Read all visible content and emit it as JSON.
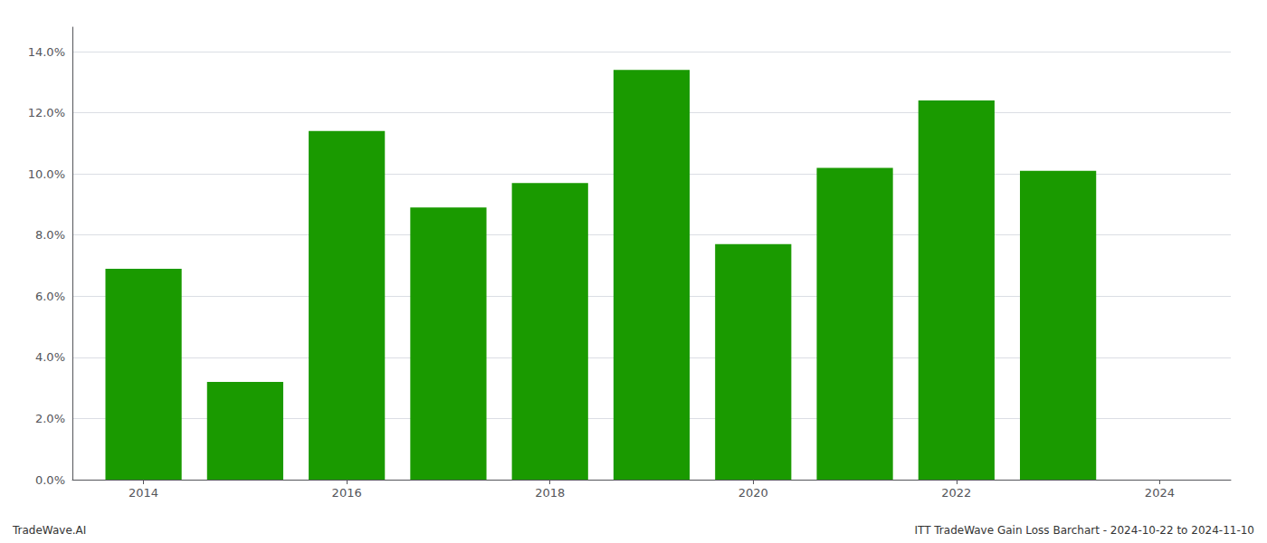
{
  "chart_data": {
    "type": "bar",
    "x": [
      2014,
      2015,
      2016,
      2017,
      2018,
      2019,
      2020,
      2021,
      2022,
      2023
    ],
    "values": [
      0.069,
      0.032,
      0.114,
      0.089,
      0.097,
      0.134,
      0.077,
      0.102,
      0.124,
      0.101
    ],
    "color": "#1a9a00",
    "xlim": [
      2013.3,
      2024.7
    ],
    "xticks": [
      2014,
      2016,
      2018,
      2020,
      2022,
      2024
    ],
    "ylim": [
      0,
      0.148
    ],
    "yticks": [
      {
        "value": 0.0,
        "label": "0.0%"
      },
      {
        "value": 0.02,
        "label": "2.0%"
      },
      {
        "value": 0.04,
        "label": "4.0%"
      },
      {
        "value": 0.06,
        "label": "6.0%"
      },
      {
        "value": 0.08,
        "label": "8.0%"
      },
      {
        "value": 0.1,
        "label": "10.0%"
      },
      {
        "value": 0.12,
        "label": "12.0%"
      },
      {
        "value": 0.14,
        "label": "14.0%"
      }
    ],
    "grid": true,
    "annotations": [
      "TradeWave.AI",
      "ITT TradeWave Gain Loss Barchart - 2024-10-22 to 2024-11-10"
    ]
  }
}
